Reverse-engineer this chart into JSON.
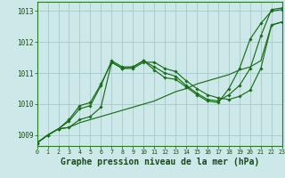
{
  "xlabel": "Graphe pression niveau de la mer (hPa)",
  "bg_color": "#cce8e8",
  "grid_color": "#aacece",
  "line_color": "#1a6e1a",
  "xlim": [
    0,
    23
  ],
  "ylim": [
    1008.65,
    1013.3
  ],
  "yticks": [
    1009,
    1010,
    1011,
    1012,
    1013
  ],
  "xticks": [
    0,
    1,
    2,
    3,
    4,
    5,
    6,
    7,
    8,
    9,
    10,
    11,
    12,
    13,
    14,
    15,
    16,
    17,
    18,
    19,
    20,
    21,
    22,
    23
  ],
  "series": [
    [
      1008.75,
      1009.0,
      1009.2,
      1009.25,
      1009.4,
      1009.5,
      1009.6,
      1009.7,
      1009.8,
      1009.9,
      1010.0,
      1010.1,
      1010.25,
      1010.4,
      1010.5,
      1010.65,
      1010.75,
      1010.85,
      1010.95,
      1011.1,
      1011.2,
      1011.4,
      1012.55,
      1012.65
    ],
    [
      1008.75,
      1009.0,
      1009.2,
      1009.25,
      1009.5,
      1009.6,
      1009.9,
      1011.35,
      1011.15,
      1011.15,
      1011.35,
      1011.35,
      1011.15,
      1011.05,
      1010.75,
      1010.5,
      1010.3,
      1010.2,
      1010.15,
      1010.25,
      1010.45,
      1011.15,
      1012.55,
      1012.65
    ],
    [
      1008.75,
      1009.0,
      1009.2,
      1009.45,
      1009.85,
      1009.95,
      1010.6,
      1011.4,
      1011.2,
      1011.2,
      1011.4,
      1011.2,
      1011.0,
      1010.9,
      1010.6,
      1010.35,
      1010.15,
      1010.1,
      1010.3,
      1010.6,
      1011.15,
      1012.2,
      1013.05,
      1013.1
    ],
    [
      1008.75,
      1009.0,
      1009.2,
      1009.5,
      1009.95,
      1010.05,
      1010.65,
      1011.35,
      1011.15,
      1011.2,
      1011.4,
      1011.1,
      1010.85,
      1010.8,
      1010.55,
      1010.3,
      1010.1,
      1010.05,
      1010.5,
      1011.15,
      1012.1,
      1012.6,
      1013.0,
      1013.05
    ]
  ],
  "markers": [
    false,
    true,
    true,
    true
  ],
  "xlabel_fontsize": 7,
  "xtick_fontsize": 4.8,
  "ytick_fontsize": 5.5
}
